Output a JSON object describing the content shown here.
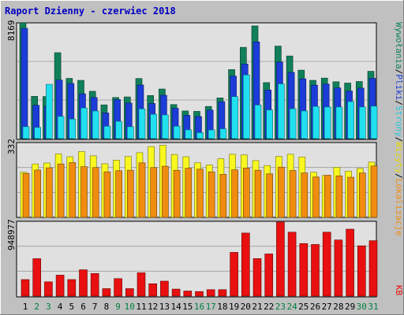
{
  "title": "Raport Dzienny -  czerwiec 2018",
  "colors": {
    "background": "#c0c0c0",
    "plot_bg": "#e0e0e0",
    "title_text": "#0000c0",
    "day_black": "#000000",
    "day_weekend": "#008040",
    "hits_dark": "#10805a",
    "files_blue": "#1c3cd8",
    "pages_cyan": "#20e0f0",
    "visits_yellow": "#f8f820",
    "sites_orange": "#f08c10",
    "kb_red": "#e81010"
  },
  "right_legend": {
    "top": [
      {
        "text": "Wywołania",
        "color": "#10805a"
      },
      {
        "text": "/",
        "color": "#000000"
      },
      {
        "text": "Pliki",
        "color": "#1c3cd8"
      },
      {
        "text": "/",
        "color": "#000000"
      },
      {
        "text": "Strony",
        "color": "#20c8e0"
      },
      {
        "text": "/",
        "color": "#000000"
      },
      {
        "text": "Wizyty",
        "color": "#e8d800"
      },
      {
        "text": "/",
        "color": "#000000"
      },
      {
        "text": "Lokalizacje",
        "color": "#f08c10"
      }
    ],
    "bottom": {
      "text": "KB",
      "color": "#e81010"
    }
  },
  "chart_data": [
    {
      "type": "bar",
      "title": "",
      "ymax_label": "8169",
      "ylim": [
        0,
        8169
      ],
      "categories": [
        "1",
        "2",
        "3",
        "4",
        "5",
        "6",
        "7",
        "8",
        "9",
        "10",
        "11",
        "12",
        "13",
        "14",
        "15",
        "16",
        "17",
        "18",
        "19",
        "20",
        "21",
        "22",
        "23",
        "24",
        "25",
        "26",
        "27",
        "28",
        "29",
        "30",
        "31"
      ],
      "weekend_days": [
        "2",
        "3",
        "9",
        "10",
        "16",
        "17",
        "23",
        "24",
        "30",
        "31"
      ],
      "series": [
        {
          "name": "Wywołania",
          "values": [
            8169,
            2980,
            2970,
            6060,
            4250,
            4110,
            3340,
            2380,
            2900,
            2940,
            4240,
            3040,
            3500,
            2400,
            1950,
            1920,
            2270,
            2870,
            4870,
            6440,
            7950,
            3950,
            6530,
            5830,
            4830,
            4110,
            4270,
            4010,
            3920,
            4030,
            4750
          ]
        },
        {
          "name": "Pliki",
          "values": [
            7780,
            2350,
            2300,
            4130,
            3890,
            3160,
            2900,
            1810,
            2750,
            2510,
            3780,
            2480,
            3060,
            2140,
            1640,
            1560,
            2010,
            2600,
            4410,
            5260,
            6820,
            3430,
            5410,
            4670,
            4220,
            3770,
            3850,
            3580,
            3360,
            3560,
            4250
          ]
        },
        {
          "name": "Strony",
          "values": [
            840,
            790,
            3830,
            1570,
            1380,
            2160,
            1950,
            870,
            1220,
            840,
            2100,
            1720,
            1670,
            870,
            620,
            420,
            610,
            690,
            2960,
            4490,
            2370,
            2020,
            3860,
            2110,
            1950,
            2270,
            2230,
            2230,
            2610,
            2230,
            2290
          ]
        }
      ]
    },
    {
      "type": "bar",
      "title": "",
      "ymax_label": "332",
      "ylim": [
        0,
        332
      ],
      "categories": [
        "1",
        "2",
        "3",
        "4",
        "5",
        "6",
        "7",
        "8",
        "9",
        "10",
        "11",
        "12",
        "13",
        "14",
        "15",
        "16",
        "17",
        "18",
        "19",
        "20",
        "21",
        "22",
        "23",
        "24",
        "25",
        "26",
        "27",
        "28",
        "29",
        "30",
        "31"
      ],
      "series": [
        {
          "name": "Wizyty",
          "values": [
            200,
            237,
            241,
            281,
            269,
            292,
            273,
            238,
            254,
            270,
            287,
            314,
            320,
            279,
            269,
            242,
            233,
            260,
            280,
            277,
            252,
            230,
            270,
            280,
            268,
            200,
            186,
            222,
            205,
            217,
            245
          ]
        },
        {
          "name": "Lokalizacje",
          "values": [
            195,
            210,
            220,
            237,
            243,
            225,
            221,
            202,
            207,
            209,
            242,
            221,
            227,
            209,
            218,
            214,
            202,
            191,
            211,
            219,
            209,
            193,
            223,
            208,
            197,
            179,
            187,
            184,
            178,
            197,
            228
          ]
        }
      ]
    },
    {
      "type": "bar",
      "title": "",
      "ymax_label": "948977",
      "ylim": [
        0,
        948977
      ],
      "categories": [
        "1",
        "2",
        "3",
        "4",
        "5",
        "6",
        "7",
        "8",
        "9",
        "10",
        "11",
        "12",
        "13",
        "14",
        "15",
        "16",
        "17",
        "18",
        "19",
        "20",
        "21",
        "22",
        "23",
        "24",
        "25",
        "26",
        "27",
        "28",
        "29",
        "30",
        "31"
      ],
      "series": [
        {
          "name": "KB",
          "values": [
            210000,
            475000,
            181000,
            266000,
            210000,
            334000,
            287000,
            95000,
            222000,
            95000,
            296000,
            157000,
            190000,
            89000,
            65000,
            58000,
            82000,
            82000,
            555000,
            800000,
            476000,
            535000,
            938000,
            811000,
            667000,
            655000,
            811000,
            712000,
            849000,
            638000,
            703000
          ]
        }
      ]
    }
  ]
}
